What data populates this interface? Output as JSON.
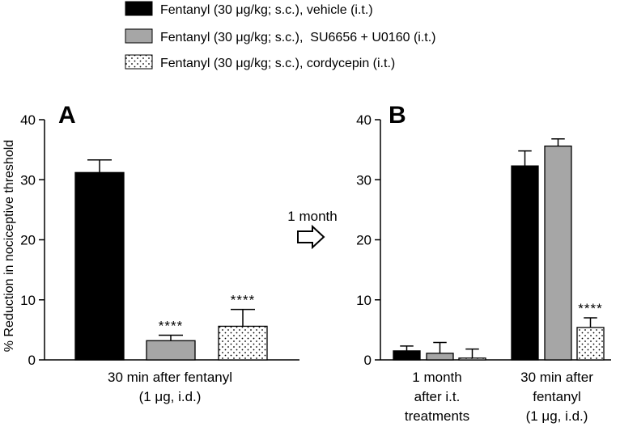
{
  "chart_data": [
    {
      "panel": "A",
      "type": "bar",
      "ylabel": "% Reduction in nociceptive threshold",
      "ylim": [
        0,
        40
      ],
      "yticks": [
        0,
        10,
        20,
        30,
        40
      ],
      "categories": [
        "30 min after fentanyl (1 μg, i.d.)"
      ],
      "category_label_lines": [
        [
          "30 min after fentanyl",
          "(1 μg, i.d.)"
        ]
      ],
      "series": [
        {
          "name": "Fentanyl (30 μg/kg; s.c.), vehicle (i.t.)",
          "values": [
            31.2
          ],
          "errors": [
            2.1
          ],
          "significance": [
            ""
          ]
        },
        {
          "name": "Fentanyl (30 μg/kg; s.c.), SU6656 + U0160 (i.t.)",
          "values": [
            3.2
          ],
          "errors": [
            0.9
          ],
          "significance": [
            "****"
          ]
        },
        {
          "name": "Fentanyl (30 μg/kg; s.c.), cordycepin (i.t.)",
          "values": [
            5.6
          ],
          "errors": [
            2.8
          ],
          "significance": [
            "****"
          ]
        }
      ]
    },
    {
      "panel": "B",
      "type": "bar",
      "ylim": [
        0,
        40
      ],
      "yticks": [
        0,
        10,
        20,
        30,
        40
      ],
      "categories": [
        "1 month after i.t. treatments",
        "30 min after fentanyl (1 μg, i.d.)"
      ],
      "category_label_lines": [
        [
          "1 month",
          "after i.t.",
          "treatments"
        ],
        [
          "30 min after",
          "fentanyl",
          "(1 μg, i.d.)"
        ]
      ],
      "series": [
        {
          "name": "Fentanyl (30 μg/kg; s.c.), vehicle (i.t.)",
          "values": [
            1.5,
            32.3
          ],
          "errors": [
            0.8,
            2.5
          ],
          "significance": [
            "",
            ""
          ]
        },
        {
          "name": "Fentanyl (30 μg/kg; s.c.), SU6656 + U0160 (i.t.)",
          "values": [
            1.1,
            35.6
          ],
          "errors": [
            1.8,
            1.2
          ],
          "significance": [
            "",
            ""
          ]
        },
        {
          "name": "Fentanyl (30 μg/kg; s.c.), cordycepin (i.t.)",
          "values": [
            0.3,
            5.4
          ],
          "errors": [
            1.5,
            1.6
          ],
          "significance": [
            "",
            "****"
          ]
        }
      ]
    }
  ],
  "legend": {
    "placement": "top-center",
    "items": [
      {
        "label": "Fentanyl (30 μg/kg; s.c.), vehicle (i.t.)",
        "fill": "black"
      },
      {
        "label": "Fentanyl (30 μg/kg; s.c.),  SU6656 + U0160 (i.t.)",
        "fill": "gray"
      },
      {
        "label": "Fentanyl (30 μg/kg; s.c.), cordycepin (i.t.)",
        "fill": "dots"
      }
    ]
  },
  "transition": {
    "label": "1 month",
    "icon": "right-arrow-icon"
  },
  "colors": {
    "vehicle": "#000000",
    "su6656_u0160": "#a6a6a6",
    "cordycepin": "#ffffff",
    "axis": "#000000"
  }
}
